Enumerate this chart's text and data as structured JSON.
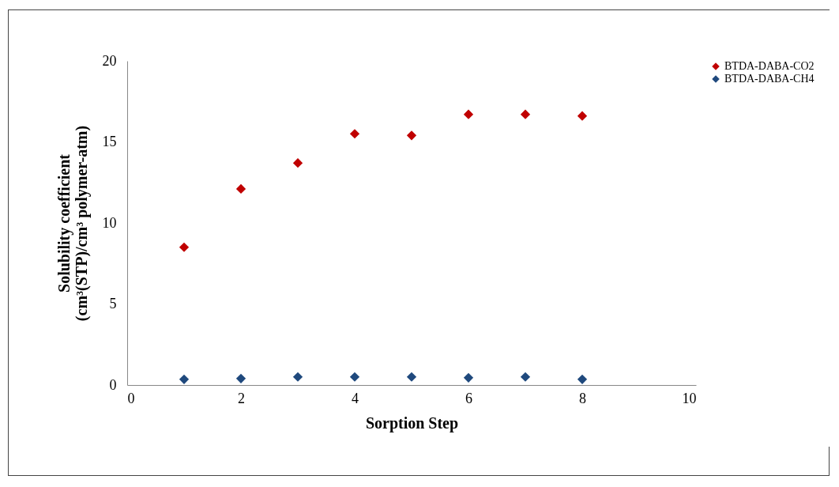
{
  "chart_data": {
    "type": "scatter",
    "xlabel": "Sorption Step",
    "ylabel": "Solubility coefficient\n(cm³(STP)/cm³ polymer-atm)",
    "x": [
      1,
      2,
      3,
      4,
      5,
      6,
      7,
      8
    ],
    "series": [
      {
        "name": "BTDA-DABA-CO2",
        "color": "#c00000",
        "values": [
          8.5,
          12.1,
          13.7,
          15.5,
          15.4,
          16.7,
          16.7,
          16.6
        ]
      },
      {
        "name": "BTDA-DABA-CH4",
        "color": "#1f497d",
        "values": [
          0.35,
          0.4,
          0.5,
          0.5,
          0.5,
          0.45,
          0.5,
          0.35
        ]
      }
    ],
    "xlim": [
      0,
      10
    ],
    "xticks": [
      0,
      2,
      4,
      6,
      8,
      10
    ],
    "ylim": [
      0,
      20
    ],
    "yticks": [
      0,
      5,
      10,
      15,
      20
    ],
    "grid": false,
    "legend": "right",
    "marker": "diamond"
  }
}
